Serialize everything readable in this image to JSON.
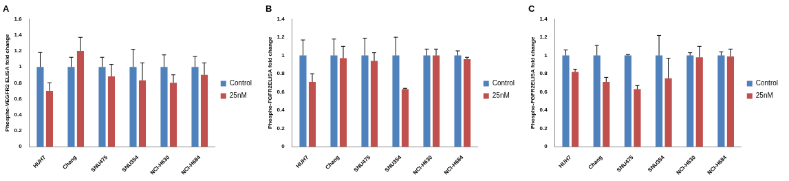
{
  "chart_data": [
    {
      "type": "bar",
      "title": "A",
      "y_label": "Phospho-VEGFR2 ELISA fold change",
      "categories": [
        "HUH7",
        "Chang",
        "SNU475",
        "SNU354",
        "NCI-H630",
        "NCI-H684"
      ],
      "series": [
        {
          "name": "Control",
          "color": "#4f81bd",
          "values": [
            1,
            1,
            1,
            1,
            1,
            1
          ],
          "errors": [
            0.18,
            0.12,
            0.12,
            0.22,
            0.15,
            0.13
          ]
        },
        {
          "name": "25nM",
          "color": "#c0504d",
          "values": [
            0.7,
            1.2,
            0.88,
            0.83,
            0.8,
            0.9
          ],
          "errors": [
            0.1,
            0.17,
            0.15,
            0.22,
            0.1,
            0.15
          ]
        }
      ],
      "ylim": [
        0,
        1.6
      ],
      "yticks": [
        0,
        0.2,
        0.4,
        0.6,
        0.8,
        1,
        1.2,
        1.4,
        1.6
      ],
      "grid": false,
      "legend": "right"
    },
    {
      "type": "bar",
      "title": "B",
      "y_label": "Phospho-FGFR2ELISA fold change",
      "categories": [
        "HUH7",
        "Chang",
        "SNU475",
        "SNU354",
        "NCI-H630",
        "NCI-H684"
      ],
      "series": [
        {
          "name": "Control",
          "color": "#4f81bd",
          "values": [
            1,
            1,
            1,
            1,
            1,
            1
          ],
          "errors": [
            0.17,
            0.18,
            0.19,
            0.2,
            0.07,
            0.05
          ]
        },
        {
          "name": "25nM",
          "color": "#c0504d",
          "values": [
            0.71,
            0.97,
            0.94,
            0.63,
            1,
            0.96
          ],
          "errors": [
            0.09,
            0.13,
            0.09,
            0.01,
            0.07,
            0.02
          ]
        }
      ],
      "ylim": [
        0,
        1.4
      ],
      "yticks": [
        0,
        0.2,
        0.4,
        0.6,
        0.8,
        1,
        1.2,
        1.4
      ],
      "grid": false,
      "legend": "right"
    },
    {
      "type": "bar",
      "title": "C",
      "y_label": "Phospho-FGFR2ELISA fold change",
      "categories": [
        "HUH7",
        "Chang",
        "SNU475",
        "SNU354",
        "NCI-H630",
        "NCI-H684"
      ],
      "series": [
        {
          "name": "Control",
          "color": "#4f81bd",
          "values": [
            1,
            1,
            1,
            1,
            1,
            1
          ],
          "errors": [
            0.06,
            0.11,
            0.01,
            0.22,
            0.03,
            0.04
          ]
        },
        {
          "name": "25nM",
          "color": "#c0504d",
          "values": [
            0.82,
            0.71,
            0.63,
            0.75,
            0.98,
            0.99
          ],
          "errors": [
            0.03,
            0.05,
            0.04,
            0.22,
            0.12,
            0.08
          ]
        }
      ],
      "ylim": [
        0,
        1.4
      ],
      "yticks": [
        0,
        0.2,
        0.4,
        0.6,
        0.8,
        1,
        1.2,
        1.4
      ],
      "grid": false,
      "legend": "right"
    }
  ]
}
